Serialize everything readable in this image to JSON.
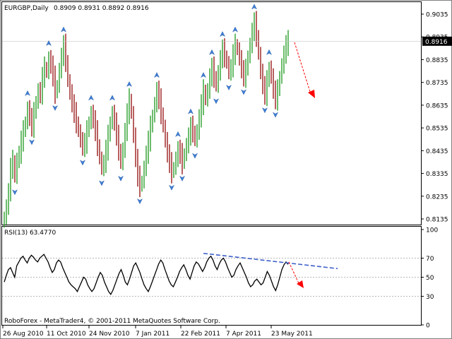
{
  "chart_data": [
    {
      "type": "bar",
      "title": "EURGBP,Daily",
      "ohlc_header": "0.8909 0.8931 0.8892 0.8916",
      "current_price": "0.8916",
      "y_ticks": [
        "0.9035",
        "0.8935",
        "0.8835",
        "0.8735",
        "0.8635",
        "0.8535",
        "0.8435",
        "0.8335",
        "0.8235",
        "0.8135"
      ],
      "x_ticks": [
        "26 Aug 2010",
        "11 Oct 2010",
        "24 Nov 2010",
        "7 Jan 2011",
        "22 Feb 2011",
        "7 Apr 2011",
        "23 May 2011"
      ],
      "ylim": [
        0.8135,
        0.9035
      ],
      "grid": false,
      "colors": {
        "up": "#2ca02c",
        "down": "#9b1c1c",
        "fractal": "#3d7fd6",
        "arrow": "#ff0000",
        "price_label_bg": "#000000"
      },
      "close_series": [
        0.8142,
        0.819,
        0.8255,
        0.836,
        0.839,
        0.832,
        0.8395,
        0.842,
        0.848,
        0.852,
        0.856,
        0.862,
        0.858,
        0.854,
        0.86,
        0.865,
        0.87,
        0.868,
        0.876,
        0.88,
        0.878,
        0.884,
        0.881,
        0.876,
        0.869,
        0.872,
        0.879,
        0.885,
        0.89,
        0.883,
        0.874,
        0.869,
        0.864,
        0.86,
        0.856,
        0.852,
        0.848,
        0.845,
        0.847,
        0.852,
        0.856,
        0.86,
        0.857,
        0.852,
        0.846,
        0.84,
        0.836,
        0.838,
        0.844,
        0.85,
        0.856,
        0.86,
        0.856,
        0.85,
        0.844,
        0.838,
        0.844,
        0.852,
        0.86,
        0.866,
        0.86,
        0.85,
        0.84,
        0.832,
        0.828,
        0.83,
        0.836,
        0.842,
        0.848,
        0.854,
        0.859,
        0.864,
        0.87,
        0.866,
        0.86,
        0.854,
        0.848,
        0.842,
        0.838,
        0.834,
        0.836,
        0.84,
        0.844,
        0.842,
        0.838,
        0.842,
        0.846,
        0.85,
        0.854,
        0.852,
        0.848,
        0.852,
        0.858,
        0.864,
        0.87,
        0.866,
        0.87,
        0.876,
        0.88,
        0.876,
        0.872,
        0.878,
        0.884,
        0.888,
        0.885,
        0.882,
        0.878,
        0.88,
        0.886,
        0.89,
        0.888,
        0.884,
        0.879,
        0.876,
        0.879,
        0.885,
        0.89,
        0.896,
        0.9,
        0.894,
        0.886,
        0.878,
        0.872,
        0.868,
        0.874,
        0.88,
        0.876,
        0.87,
        0.866,
        0.87,
        0.876,
        0.881,
        0.886,
        0.89,
        0.8916
      ]
    },
    {
      "type": "line",
      "title": "RSI(13) 63.4770",
      "y_ticks": [
        "100",
        "70",
        "50",
        "30",
        "0"
      ],
      "ylim": [
        0,
        100
      ],
      "levels": [
        70,
        50,
        30
      ],
      "colors": {
        "line": "#000000",
        "trend": "#3d5fc9",
        "level": "#a0a0a0"
      },
      "values": [
        45,
        52,
        58,
        60,
        55,
        50,
        62,
        66,
        70,
        72,
        68,
        65,
        70,
        73,
        71,
        68,
        66,
        70,
        72,
        74,
        70,
        66,
        60,
        55,
        58,
        65,
        68,
        66,
        60,
        55,
        50,
        45,
        42,
        40,
        38,
        35,
        40,
        45,
        50,
        48,
        42,
        38,
        35,
        38,
        44,
        50,
        55,
        52,
        45,
        40,
        35,
        32,
        36,
        42,
        48,
        54,
        58,
        52,
        45,
        42,
        48,
        55,
        62,
        65,
        60,
        55,
        48,
        42,
        38,
        35,
        40,
        46,
        52,
        58,
        64,
        68,
        65,
        58,
        52,
        46,
        42,
        40,
        45,
        50,
        56,
        60,
        63,
        58,
        52,
        48,
        55,
        62,
        66,
        64,
        60,
        56,
        60,
        66,
        70,
        72,
        68,
        62,
        58,
        64,
        68,
        70,
        66,
        60,
        55,
        50,
        52,
        58,
        62,
        65,
        60,
        55,
        50,
        44,
        40,
        42,
        46,
        48,
        45,
        42,
        44,
        50,
        56,
        52,
        46,
        40,
        36,
        42,
        50,
        58,
        63,
        66,
        63.477
      ]
    }
  ],
  "footer": "RoboForex - MetaTrader4, © 2001-2011 MetaQuotes Software Corp."
}
